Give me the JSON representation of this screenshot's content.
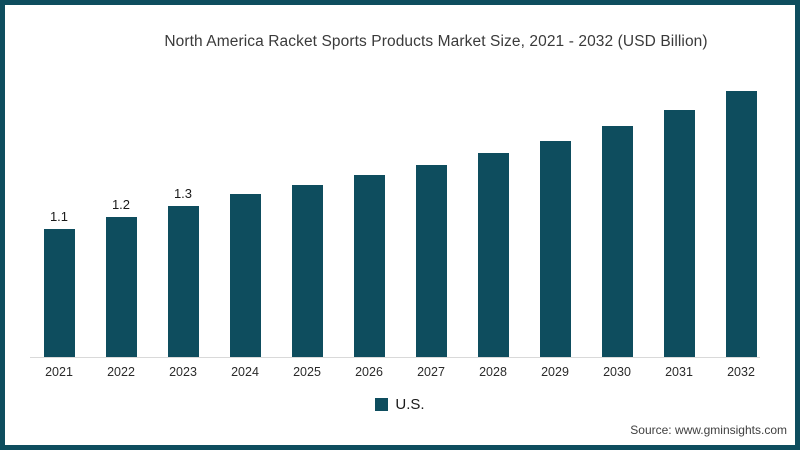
{
  "page": {
    "source": "Source: www.gminsights.com"
  },
  "colors": {
    "bar": "#0e4d5e",
    "frame_border": "#0e4d5e",
    "axis_line": "#d9d9d9",
    "title_text": "#3a3a3a"
  },
  "legend": {
    "items": [
      {
        "label": "U.S.",
        "color": "#0e4d5e"
      }
    ],
    "position": "bottom-center"
  },
  "chart_data": {
    "type": "bar",
    "title": "North America Racket Sports Products Market Size, 2021 - 2032 (USD Billion)",
    "xlabel": "",
    "ylabel": "",
    "categories": [
      "2021",
      "2022",
      "2023",
      "2024",
      "2025",
      "2026",
      "2027",
      "2028",
      "2029",
      "2030",
      "2031",
      "2032"
    ],
    "series": [
      {
        "name": "U.S.",
        "values": [
          1.1,
          1.2,
          1.3,
          1.4,
          1.48,
          1.56,
          1.65,
          1.75,
          1.85,
          1.98,
          2.12,
          2.28
        ],
        "data_labels": [
          "1.1",
          "1.2",
          "1.3",
          "",
          "",
          "",
          "",
          "",
          "",
          "",
          "",
          ""
        ],
        "color": "#0e4d5e"
      }
    ],
    "ylim": [
      0,
      2.5
    ],
    "grid": false,
    "y_axis_visible": false,
    "legend_position": "bottom-center"
  }
}
